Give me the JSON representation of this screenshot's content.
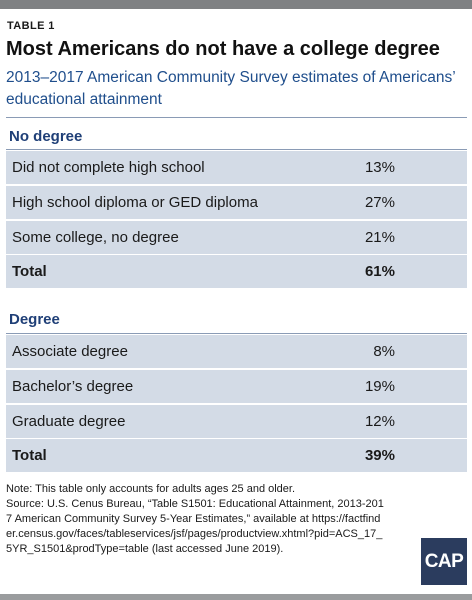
{
  "label": "TABLE 1",
  "title": "Most Americans do not have a college degree",
  "subtitle": "2013–2017 American Community Survey estimates of Americans’ educational attainment",
  "sections": [
    {
      "heading": "No degree",
      "rows": [
        {
          "label": "Did not complete high school",
          "value": "13%"
        },
        {
          "label": "High school diploma or GED diploma",
          "value": "27%"
        },
        {
          "label": "Some college, no degree",
          "value": "21%"
        },
        {
          "label": "Total",
          "value": "61%"
        }
      ]
    },
    {
      "heading": "Degree",
      "rows": [
        {
          "label": "Associate degree",
          "value": "8%"
        },
        {
          "label": "Bachelor’s degree",
          "value": "19%"
        },
        {
          "label": "Graduate degree",
          "value": "12%"
        },
        {
          "label": "Total",
          "value": "39%"
        }
      ]
    }
  ],
  "note": "Note: This table only accounts for adults ages 25 and older.",
  "source": "Source: U.S. Cenus Bureau, “Table S1501: Educational Attainment, 2013-2017 American Community Survey 5-Year Estimates,” available at https://factfinder.census.gov/faces/tableservices/jsf/pages/productview.xhtml?pid=ACS_17_5YR_S1501&prodType=table (last accessed June 2019).",
  "logo_text": "CAP",
  "colors": {
    "accent": "#1f4e8c",
    "row_fill": "#d3dbe6",
    "logo_bg": "#2b3c5e"
  },
  "chart_data": {
    "type": "table",
    "title": "Most Americans do not have a college degree",
    "subtitle": "2013–2017 American Community Survey estimates of Americans’ educational attainment",
    "groups": [
      {
        "name": "No degree",
        "categories": [
          "Did not complete high school",
          "High school diploma or GED diploma",
          "Some college, no degree",
          "Total"
        ],
        "values": [
          13,
          27,
          21,
          61
        ]
      },
      {
        "name": "Degree",
        "categories": [
          "Associate degree",
          "Bachelor’s degree",
          "Graduate degree",
          "Total"
        ],
        "values": [
          8,
          19,
          12,
          39
        ]
      }
    ]
  }
}
